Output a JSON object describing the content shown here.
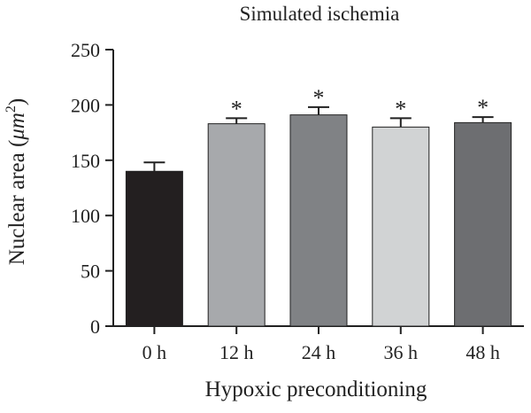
{
  "chart_data": {
    "type": "bar",
    "title": "Simulated ischemia",
    "xlabel": "Hypoxic preconditioning",
    "ylabel_prefix": "Nuclear area (",
    "ylabel_unit": "μm",
    "ylabel_sup": "2",
    "ylabel_suffix": ")",
    "categories": [
      "0 h",
      "12 h",
      "24 h",
      "36 h",
      "48 h"
    ],
    "values": [
      140,
      183,
      191,
      180,
      184
    ],
    "errors": [
      8,
      5,
      7,
      8,
      5
    ],
    "significance": [
      "",
      "*",
      "*",
      "*",
      "*"
    ],
    "bar_colors": [
      "#231f20",
      "#a7a9ac",
      "#808285",
      "#d1d3d4",
      "#6d6e71"
    ],
    "ylim": [
      0,
      250
    ],
    "yticks": [
      0,
      50,
      100,
      150,
      200,
      250
    ],
    "grid": false,
    "legend": "none"
  }
}
